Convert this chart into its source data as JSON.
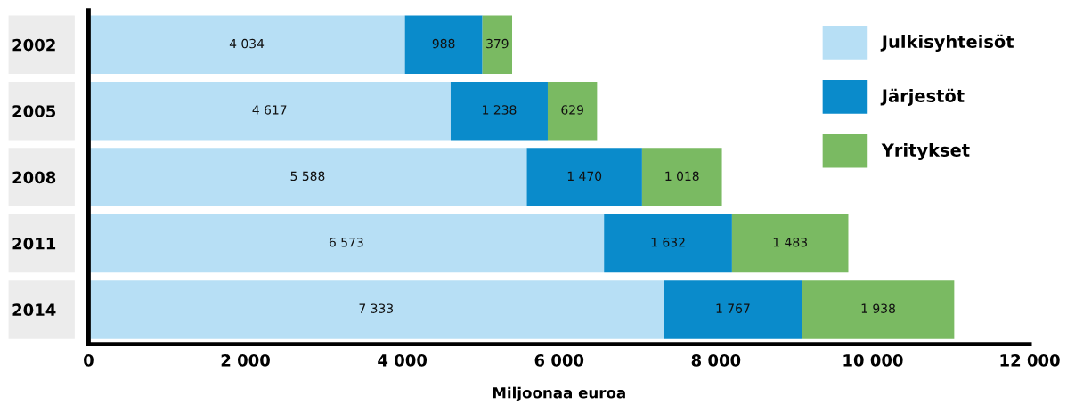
{
  "chart_data": {
    "type": "bar",
    "orientation": "horizontal",
    "stacked": true,
    "xlabel": "Miljoonaa euroa",
    "categories": [
      "2002",
      "2005",
      "2008",
      "2011",
      "2014"
    ],
    "series": [
      {
        "name": "Julkisyhteisöt",
        "color": "#b7dff5",
        "values": [
          4034,
          4617,
          5588,
          6573,
          7333
        ],
        "value_labels": [
          "4 034",
          "4 617",
          "5 588",
          "6 573",
          "7 333"
        ]
      },
      {
        "name": "Järjestöt",
        "color": "#0a8bcb",
        "values": [
          988,
          1238,
          1470,
          1632,
          1767
        ],
        "value_labels": [
          "988",
          "1 238",
          "1 470",
          "1 632",
          "1 767"
        ]
      },
      {
        "name": "Yritykset",
        "color": "#7aba62",
        "values": [
          379,
          629,
          1018,
          1483,
          1938
        ],
        "value_labels": [
          "379",
          "629",
          "1 018",
          "1 483",
          "1 938"
        ]
      }
    ],
    "xlim": [
      0,
      12000
    ],
    "xticks": [
      0,
      {
        "value": 2000,
        "label": "2 000"
      },
      {
        "value": 4000,
        "label": "4 000"
      },
      {
        "value": 6000,
        "label": "6 000"
      },
      {
        "value": 8000,
        "label": "8 000"
      },
      {
        "value": 10000,
        "label": "10 000"
      },
      {
        "value": 12000,
        "label": "12 000"
      }
    ],
    "grid": false,
    "legend": "top right"
  }
}
